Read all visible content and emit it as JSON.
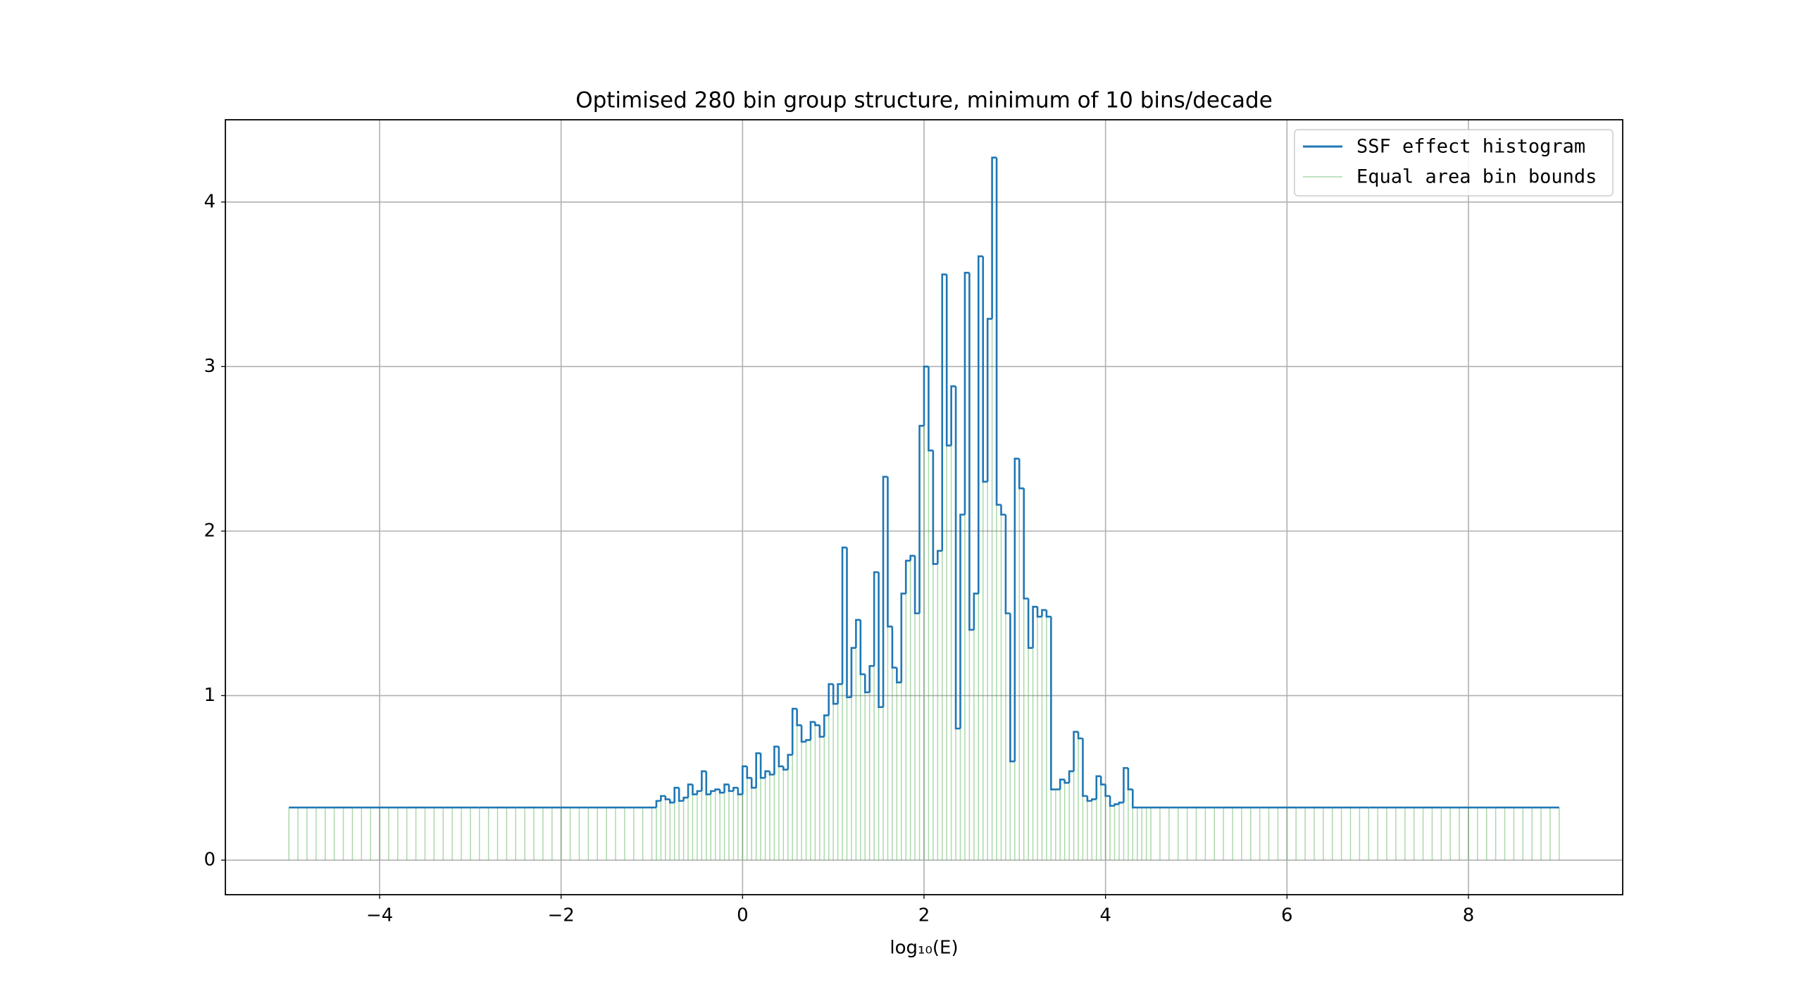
{
  "chart_data": {
    "type": "histogram",
    "title": "Optimised 280 bin group structure, minimum of 10 bins/decade",
    "x_label": "log₁₀(E)",
    "xlim": [
      -5.7,
      9.7
    ],
    "ylim": [
      -0.21,
      4.5
    ],
    "xticks": [
      {
        "value": -4,
        "label": "−4"
      },
      {
        "value": -2,
        "label": "−2"
      },
      0,
      2,
      4,
      6,
      8
    ],
    "yticks": [
      0,
      1,
      2,
      3,
      4
    ],
    "grid": true,
    "legend": "upper right",
    "bins": [
      -5,
      -4.9,
      -4.8,
      -4.7,
      -4.6,
      -4.5,
      -4.4,
      -4.3,
      -4.2,
      -4.1,
      -4,
      -3.9,
      -3.8,
      -3.7,
      -3.6,
      -3.5,
      -3.4,
      -3.3,
      -3.2,
      -3.1,
      -3,
      -2.9,
      -2.8,
      -2.7,
      -2.6,
      -2.5,
      -2.4,
      -2.3,
      -2.2,
      -2.1,
      -2,
      -1.9,
      -1.8,
      -1.7,
      -1.6,
      -1.5,
      -1.4,
      -1.3,
      -1.2,
      -1.1,
      -1,
      -0.95,
      -0.9,
      -0.85,
      -0.8,
      -0.75,
      -0.7,
      -0.65,
      -0.6,
      -0.55,
      -0.5,
      -0.45,
      -0.4,
      -0.35,
      -0.3,
      -0.25,
      -0.2,
      -0.15,
      -0.1,
      -0.05,
      0,
      0.05,
      0.1,
      0.15,
      0.2,
      0.25,
      0.3,
      0.35,
      0.4,
      0.45,
      0.5,
      0.55,
      0.6,
      0.65,
      0.7,
      0.75,
      0.8,
      0.85,
      0.9,
      0.95,
      1,
      1.05,
      1.1,
      1.15,
      1.2,
      1.25,
      1.3,
      1.35,
      1.4,
      1.45,
      1.5,
      1.55,
      1.6,
      1.65,
      1.7,
      1.75,
      1.8,
      1.85,
      1.9,
      1.95,
      2,
      2.05,
      2.1,
      2.15,
      2.2,
      2.25,
      2.3,
      2.35,
      2.4,
      2.45,
      2.5,
      2.55,
      2.6,
      2.65,
      2.7,
      2.75,
      2.8,
      2.85,
      2.9,
      2.95,
      3,
      3.05,
      3.1,
      3.15,
      3.2,
      3.25,
      3.3,
      3.35,
      3.4,
      3.45,
      3.5,
      3.55,
      3.6,
      3.65,
      3.7,
      3.75,
      3.8,
      3.85,
      3.9,
      3.95,
      4,
      4.05,
      4.1,
      4.15,
      4.2,
      4.25,
      4.3,
      4.35,
      4.4,
      4.45,
      4.5,
      4.6,
      4.7,
      4.8,
      4.9,
      5,
      5.1,
      5.2,
      5.3,
      5.4,
      5.5,
      5.6,
      5.7,
      5.8,
      5.9,
      6,
      6.1,
      6.2,
      6.3,
      6.4,
      6.5,
      6.6,
      6.7,
      6.8,
      6.9,
      7,
      7.1,
      7.2,
      7.3,
      7.4,
      7.5,
      7.6,
      7.7,
      7.8,
      7.9,
      8,
      8.1,
      8.2,
      8.3,
      8.4,
      8.5,
      8.6,
      8.7,
      8.8,
      8.9,
      9
    ],
    "series": [
      {
        "name": "SSF effect histogram",
        "color": "#1f77b4",
        "values": [
          0.32,
          0.32,
          0.32,
          0.32,
          0.32,
          0.32,
          0.32,
          0.32,
          0.32,
          0.32,
          0.32,
          0.32,
          0.32,
          0.32,
          0.32,
          0.32,
          0.32,
          0.32,
          0.32,
          0.32,
          0.32,
          0.32,
          0.32,
          0.32,
          0.32,
          0.32,
          0.32,
          0.32,
          0.32,
          0.32,
          0.32,
          0.32,
          0.32,
          0.32,
          0.32,
          0.32,
          0.32,
          0.32,
          0.32,
          0.32,
          0.32,
          0.36,
          0.39,
          0.37,
          0.35,
          0.44,
          0.36,
          0.38,
          0.46,
          0.4,
          0.42,
          0.54,
          0.4,
          0.42,
          0.43,
          0.41,
          0.46,
          0.42,
          0.44,
          0.4,
          0.57,
          0.5,
          0.44,
          0.65,
          0.5,
          0.54,
          0.52,
          0.69,
          0.57,
          0.55,
          0.64,
          0.92,
          0.82,
          0.72,
          0.73,
          0.84,
          0.82,
          0.75,
          0.88,
          1.07,
          0.95,
          1.07,
          1.9,
          0.99,
          1.29,
          1.46,
          1.13,
          1.02,
          1.18,
          1.75,
          0.93,
          2.33,
          1.42,
          1.17,
          1.08,
          1.62,
          1.82,
          1.85,
          1.5,
          2.64,
          3.0,
          2.49,
          1.8,
          1.88,
          3.56,
          2.52,
          2.88,
          0.8,
          2.1,
          3.57,
          1.4,
          1.62,
          3.67,
          2.3,
          3.29,
          4.27,
          2.16,
          2.1,
          1.5,
          0.6,
          2.44,
          2.26,
          1.59,
          1.29,
          1.54,
          1.48,
          1.52,
          1.48,
          0.43,
          0.43,
          0.49,
          0.47,
          0.54,
          0.78,
          0.74,
          0.39,
          0.36,
          0.37,
          0.51,
          0.46,
          0.39,
          0.33,
          0.34,
          0.35,
          0.56,
          0.43,
          0.32,
          0.32,
          0.32,
          0.32,
          0.32,
          0.32,
          0.32,
          0.32,
          0.32,
          0.32,
          0.32,
          0.32,
          0.32,
          0.32,
          0.32,
          0.32,
          0.32,
          0.32,
          0.32,
          0.32,
          0.32,
          0.32,
          0.32,
          0.32,
          0.32,
          0.32,
          0.32,
          0.32,
          0.32,
          0.32,
          0.32,
          0.32,
          0.32,
          0.32,
          0.32,
          0.32,
          0.32,
          0.32,
          0.32,
          0.32,
          0.32,
          0.32,
          0.32,
          0.32,
          0.32,
          0.32,
          0.32,
          0.32,
          0.32
        ]
      }
    ],
    "bounds": {
      "name": "Equal area bin bounds",
      "color": "#2ca02c"
    }
  }
}
